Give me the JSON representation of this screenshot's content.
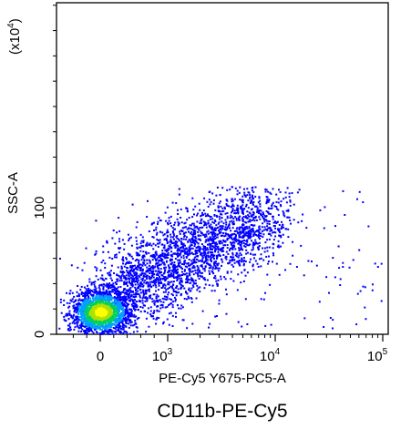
{
  "chart_data": {
    "type": "scatter",
    "style": "density-dot-plot",
    "title": "",
    "caption": "CD11b-PE-Cy5",
    "xlabel": "PE-Cy5 Y675-PC5-A",
    "ylabel": "SSC-A",
    "y_multiplier": "(x10",
    "y_multiplier_exp": "4",
    "y_multiplier_close": ")",
    "x_scale": "logicle",
    "x_ticks": [
      {
        "value": 0,
        "base": "0",
        "exp": ""
      },
      {
        "value": 1000,
        "base": "10",
        "exp": "3"
      },
      {
        "value": 10000,
        "base": "10",
        "exp": "4"
      },
      {
        "value": 100000,
        "base": "10",
        "exp": "5"
      }
    ],
    "y_ticks": [
      {
        "value": 0,
        "label": "0"
      },
      {
        "value": 100,
        "label": "100"
      }
    ],
    "ylim": [
      0,
      262
    ],
    "density_colors": [
      "#0000ff",
      "#00a0ff",
      "#00d060",
      "#b0e000",
      "#ffff00"
    ],
    "clusters": [
      {
        "name_hint": "dense",
        "x_center": 0,
        "y_center": 18,
        "count": 1800
      },
      {
        "name_hint": "spread",
        "x_center": 2000,
        "y_center": 75,
        "count": 2600
      }
    ],
    "grid": false,
    "legend": "none"
  }
}
